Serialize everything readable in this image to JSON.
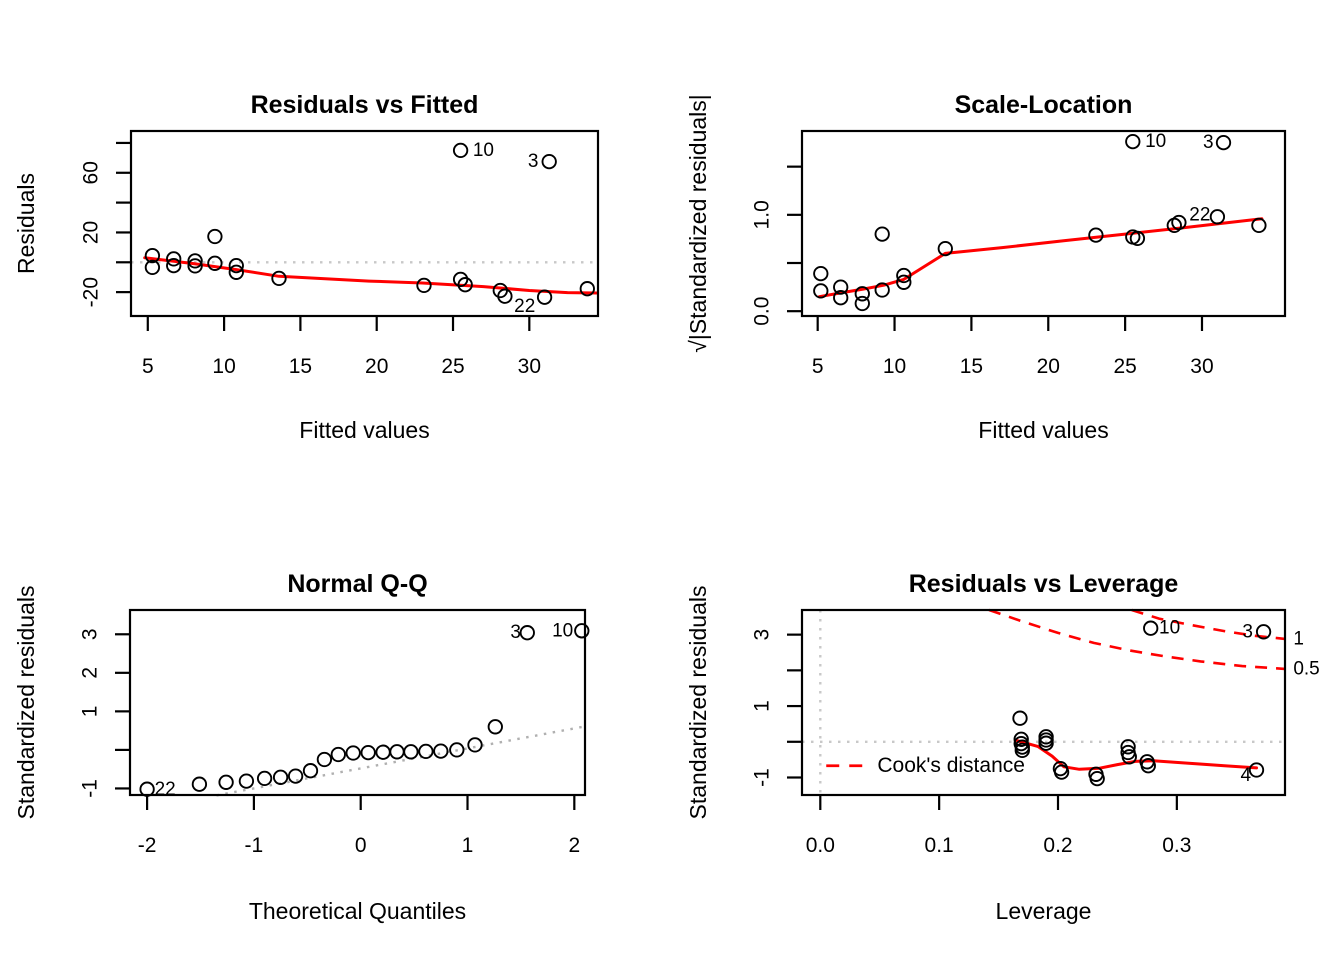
{
  "figure": {
    "colors": {
      "point": "#000000",
      "smooth": "#ff0000",
      "contour": "#ff0000",
      "reference": "#c8c8c8",
      "qq_line": "#b0b0b0",
      "contour_label": "#ff0000"
    }
  },
  "chart_data": [
    {
      "id": "residuals-vs-fitted",
      "type": "scatter",
      "title": "Residuals vs Fitted",
      "xlabel": "Fitted values",
      "ylabel": "Residuals",
      "xlim": [
        3.9,
        34.5
      ],
      "ylim": [
        -36,
        88
      ],
      "xticks": [
        {
          "v": 5,
          "label": "5"
        },
        {
          "v": 10,
          "label": "10"
        },
        {
          "v": 15,
          "label": "15"
        },
        {
          "v": 20,
          "label": "20"
        },
        {
          "v": 25,
          "label": "25"
        },
        {
          "v": 30,
          "label": "30"
        }
      ],
      "yticks": [
        {
          "v": -20,
          "label": "-20"
        },
        {
          "v": 0,
          "label": ""
        },
        {
          "v": 20,
          "label": "20"
        },
        {
          "v": 40,
          "label": ""
        },
        {
          "v": 60,
          "label": "60"
        },
        {
          "v": 80,
          "label": ""
        }
      ],
      "grid": false,
      "ref_hlines": [
        0
      ],
      "points": [
        [
          5.3,
          4.5
        ],
        [
          5.3,
          -3.4
        ],
        [
          6.7,
          2.3
        ],
        [
          6.7,
          -2.2
        ],
        [
          8.1,
          0.9
        ],
        [
          8.1,
          -2.4
        ],
        [
          9.4,
          17.3
        ],
        [
          9.4,
          -0.7
        ],
        [
          10.8,
          -2.2
        ],
        [
          10.8,
          -6.7
        ],
        [
          13.6,
          -10.8
        ],
        [
          23.1,
          -15.5
        ],
        [
          25.5,
          75
        ],
        [
          25.5,
          -11.5
        ],
        [
          25.8,
          -15
        ],
        [
          28.1,
          -18.9
        ],
        [
          28.4,
          -22.7
        ],
        [
          31,
          -23.4
        ],
        [
          31.3,
          67.5
        ],
        [
          33.8,
          -17.7
        ]
      ],
      "smooth": [
        [
          4.8,
          3.0
        ],
        [
          8,
          -0.9
        ],
        [
          10.8,
          -4.9
        ],
        [
          13.6,
          -9.4
        ],
        [
          19.5,
          -12.6
        ],
        [
          23,
          -13.9
        ],
        [
          27,
          -16.3
        ],
        [
          30,
          -18.9
        ],
        [
          32.5,
          -20.3
        ],
        [
          34.4,
          -20.6
        ]
      ],
      "annotations": [
        {
          "text": "10",
          "x": 26.3,
          "y": 75,
          "anchor": "start"
        },
        {
          "text": "3",
          "x": 30.6,
          "y": 67.5,
          "anchor": "end"
        },
        {
          "text": "22",
          "x": 29.7,
          "y": -29.5,
          "anchor": "middle"
        }
      ]
    },
    {
      "id": "scale-location",
      "type": "scatter",
      "title": "Scale-Location",
      "xlabel": "Fitted values",
      "ylabel": "√|Standardized residuals|",
      "xlim": [
        3.98,
        35.4
      ],
      "ylim": [
        -0.05,
        1.87
      ],
      "xticks": [
        {
          "v": 5,
          "label": "5"
        },
        {
          "v": 10,
          "label": "10"
        },
        {
          "v": 15,
          "label": "15"
        },
        {
          "v": 20,
          "label": "20"
        },
        {
          "v": 25,
          "label": "25"
        },
        {
          "v": 30,
          "label": "30"
        }
      ],
      "yticks": [
        {
          "v": 0,
          "label": "0.0"
        },
        {
          "v": 0.5,
          "label": ""
        },
        {
          "v": 1.0,
          "label": "1.0"
        },
        {
          "v": 1.5,
          "label": ""
        }
      ],
      "grid": false,
      "ref_hlines": [],
      "points": [
        [
          5.2,
          0.39
        ],
        [
          5.2,
          0.21
        ],
        [
          6.5,
          0.25
        ],
        [
          6.5,
          0.14
        ],
        [
          7.9,
          0.18
        ],
        [
          7.9,
          0.08
        ],
        [
          9.2,
          0.8
        ],
        [
          9.2,
          0.22
        ],
        [
          10.6,
          0.37
        ],
        [
          10.6,
          0.3
        ],
        [
          13.3,
          0.65
        ],
        [
          23.1,
          0.79
        ],
        [
          25.5,
          1.76
        ],
        [
          25.5,
          0.77
        ],
        [
          25.8,
          0.755
        ],
        [
          28.2,
          0.89
        ],
        [
          28.5,
          0.92
        ],
        [
          31.0,
          0.98
        ],
        [
          31.4,
          1.75
        ],
        [
          33.7,
          0.89
        ]
      ],
      "smooth": [
        [
          5.1,
          0.15
        ],
        [
          6.5,
          0.19
        ],
        [
          8,
          0.23
        ],
        [
          9.3,
          0.27
        ],
        [
          10.6,
          0.33
        ],
        [
          13.3,
          0.6
        ],
        [
          17,
          0.66
        ],
        [
          21,
          0.73
        ],
        [
          25,
          0.8
        ],
        [
          29,
          0.87
        ],
        [
          33.9,
          0.96
        ]
      ],
      "annotations": [
        {
          "text": "10",
          "x": 26.3,
          "y": 1.76,
          "anchor": "start"
        },
        {
          "text": "3",
          "x": 30.75,
          "y": 1.75,
          "anchor": "end"
        },
        {
          "text": "22",
          "x": 30.55,
          "y": 1.0,
          "anchor": "end"
        }
      ]
    },
    {
      "id": "normal-qq",
      "type": "scatter",
      "title": "Normal Q-Q",
      "xlabel": "Theoretical Quantiles",
      "ylabel": "Standardized residuals",
      "xlim": [
        -2.16,
        2.1
      ],
      "ylim": [
        -1.17,
        3.63
      ],
      "xticks": [
        {
          "v": -2,
          "label": "-2"
        },
        {
          "v": -1,
          "label": "-1"
        },
        {
          "v": 0,
          "label": "0"
        },
        {
          "v": 1,
          "label": "1"
        },
        {
          "v": 2,
          "label": "2"
        }
      ],
      "yticks": [
        {
          "v": -1,
          "label": "-1"
        },
        {
          "v": 0,
          "label": ""
        },
        {
          "v": 1,
          "label": "1"
        },
        {
          "v": 2,
          "label": "2"
        },
        {
          "v": 3,
          "label": "3"
        }
      ],
      "grid": false,
      "ref_hlines": [],
      "qq_line": {
        "from": [
          -1.35,
          -1.18
        ],
        "to": [
          2.1,
          0.61
        ]
      },
      "points": [
        [
          -2.0,
          -1.02
        ],
        [
          -1.51,
          -0.89
        ],
        [
          -1.26,
          -0.84
        ],
        [
          -1.07,
          -0.81
        ],
        [
          -0.9,
          -0.74
        ],
        [
          -0.75,
          -0.71
        ],
        [
          -0.61,
          -0.68
        ],
        [
          -0.47,
          -0.54
        ],
        [
          -0.34,
          -0.25
        ],
        [
          -0.21,
          -0.12
        ],
        [
          -0.07,
          -0.08
        ],
        [
          0.07,
          -0.07
        ],
        [
          0.21,
          -0.06
        ],
        [
          0.34,
          -0.05
        ],
        [
          0.47,
          -0.05
        ],
        [
          0.61,
          -0.04
        ],
        [
          0.75,
          -0.03
        ],
        [
          0.9,
          0.0
        ],
        [
          1.07,
          0.13
        ],
        [
          1.26,
          0.6
        ],
        [
          1.56,
          3.04
        ],
        [
          2.07,
          3.09
        ]
      ],
      "annotations": [
        {
          "text": "22",
          "x": -1.93,
          "y": -1.03,
          "anchor": "start"
        },
        {
          "text": "3",
          "x": 1.5,
          "y": 3.04,
          "anchor": "end"
        },
        {
          "text": "10",
          "x": 1.99,
          "y": 3.09,
          "anchor": "end"
        }
      ]
    },
    {
      "id": "residuals-vs-leverage",
      "type": "scatter",
      "title": "Residuals vs Leverage",
      "xlabel": "Leverage",
      "ylabel": "Standardized residuals",
      "xlim": [
        -0.0154,
        0.391
      ],
      "ylim": [
        -1.49,
        3.69
      ],
      "xticks": [
        {
          "v": 0,
          "label": "0.0"
        },
        {
          "v": 0.1,
          "label": "0.1"
        },
        {
          "v": 0.2,
          "label": "0.2"
        },
        {
          "v": 0.3,
          "label": "0.3"
        }
      ],
      "yticks": [
        {
          "v": -1,
          "label": "-1"
        },
        {
          "v": 0,
          "label": ""
        },
        {
          "v": 1,
          "label": "1"
        },
        {
          "v": 2,
          "label": ""
        },
        {
          "v": 3,
          "label": "3"
        }
      ],
      "grid": false,
      "ref_hlines": [
        0
      ],
      "ref_vlines": [
        0
      ],
      "points": [
        [
          0.168,
          0.66
        ],
        [
          0.169,
          0.07
        ],
        [
          0.169,
          -0.05
        ],
        [
          0.17,
          -0.15
        ],
        [
          0.17,
          -0.24
        ],
        [
          0.19,
          0.14
        ],
        [
          0.19,
          0.05
        ],
        [
          0.19,
          -0.04
        ],
        [
          0.202,
          -0.75
        ],
        [
          0.203,
          -0.85
        ],
        [
          0.232,
          -0.91
        ],
        [
          0.233,
          -1.03
        ],
        [
          0.259,
          -0.14
        ],
        [
          0.259,
          -0.3
        ],
        [
          0.26,
          -0.42
        ],
        [
          0.275,
          -0.56
        ],
        [
          0.276,
          -0.67
        ],
        [
          0.278,
          3.18
        ],
        [
          0.373,
          3.08
        ],
        [
          0.367,
          -0.79
        ]
      ],
      "smooth": [
        [
          0.165,
          0.04
        ],
        [
          0.183,
          -0.13
        ],
        [
          0.195,
          -0.4
        ],
        [
          0.205,
          -0.7
        ],
        [
          0.218,
          -0.77
        ],
        [
          0.235,
          -0.74
        ],
        [
          0.25,
          -0.64
        ],
        [
          0.265,
          -0.55
        ],
        [
          0.28,
          -0.53
        ],
        [
          0.31,
          -0.6
        ],
        [
          0.34,
          -0.67
        ],
        [
          0.367,
          -0.73
        ]
      ],
      "contours": [
        {
          "label": "1",
          "points": [
            [
              0.262,
              3.69
            ],
            [
              0.285,
              3.45
            ],
            [
              0.31,
              3.28
            ],
            [
              0.34,
              3.1
            ],
            [
              0.365,
              2.97
            ],
            [
              0.391,
              2.88
            ]
          ],
          "label_pos": [
            0.398,
            2.88
          ]
        },
        {
          "label": "0.5",
          "points": [
            [
              0.142,
              3.69
            ],
            [
              0.17,
              3.37
            ],
            [
              0.2,
              3.05
            ],
            [
              0.23,
              2.77
            ],
            [
              0.26,
              2.56
            ],
            [
              0.29,
              2.39
            ],
            [
              0.32,
              2.25
            ],
            [
              0.355,
              2.12
            ],
            [
              0.391,
              2.04
            ]
          ],
          "label_pos": [
            0.398,
            2.04
          ]
        }
      ],
      "legend": {
        "text": "Cook's distance",
        "line_from": 0.005,
        "line_to": 0.04,
        "text_x": 0.048,
        "y": -0.67
      },
      "annotations": [
        {
          "text": "10",
          "x": 0.285,
          "y": 3.18,
          "anchor": "start"
        },
        {
          "text": "3",
          "x": 0.364,
          "y": 3.08,
          "anchor": "end"
        },
        {
          "text": "4",
          "x": 0.358,
          "y": -0.95,
          "anchor": "middle"
        }
      ]
    }
  ]
}
